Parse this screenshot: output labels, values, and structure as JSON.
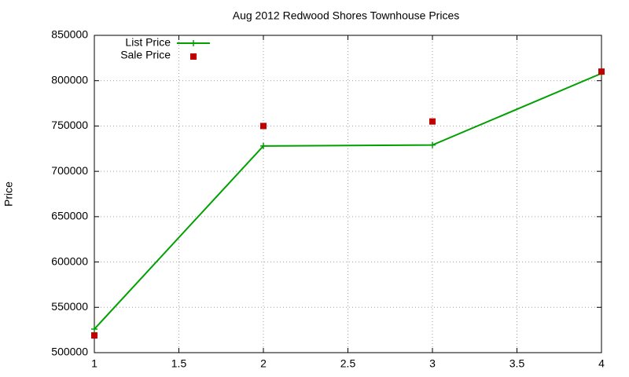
{
  "chart_data": {
    "type": "line",
    "title": "Aug 2012 Redwood Shores Townhouse Prices",
    "y_label": "Price",
    "x": [
      1,
      2,
      3,
      4
    ],
    "series": [
      {
        "name": "List Price",
        "color": "#00a000",
        "style": "linespoints",
        "values": [
          526000,
          728000,
          729000,
          808000
        ]
      },
      {
        "name": "Sale Price",
        "color": "#c00000",
        "style": "points",
        "values": [
          519000,
          750000,
          755000,
          810000
        ]
      }
    ],
    "xlim": [
      1,
      4
    ],
    "xticks": [
      1,
      1.5,
      2,
      2.5,
      3,
      3.5,
      4
    ],
    "ylim": [
      500000,
      850000
    ],
    "yticks": [
      500000,
      550000,
      600000,
      650000,
      700000,
      750000,
      800000,
      850000
    ],
    "grid": true,
    "legend": "top-left"
  }
}
